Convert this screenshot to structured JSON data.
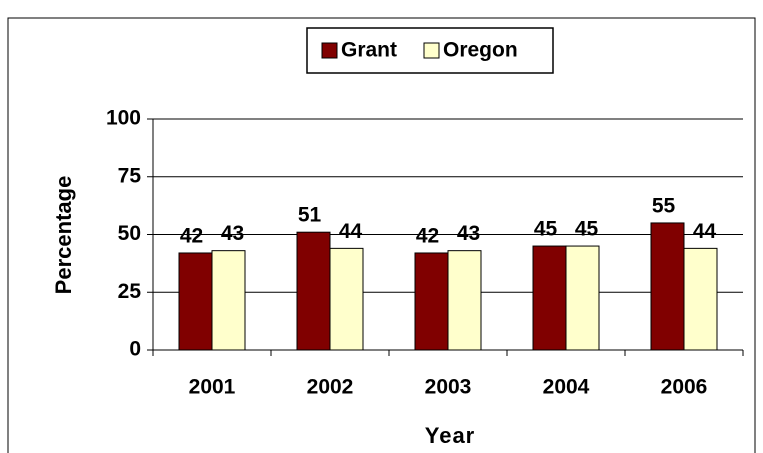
{
  "chart_data": {
    "type": "bar",
    "categories": [
      "2001",
      "2002",
      "2003",
      "2004",
      "2006"
    ],
    "series": [
      {
        "name": "Grant",
        "color": "#800000",
        "values": [
          42,
          51,
          42,
          45,
          55
        ]
      },
      {
        "name": "Oregon",
        "color": "#ffffcc",
        "values": [
          43,
          44,
          43,
          45,
          44
        ]
      }
    ],
    "x_label": "Year",
    "y_label": "Percentage",
    "ylim": [
      0,
      100
    ],
    "yticks": [
      0,
      25,
      50,
      75,
      100
    ],
    "grid": true,
    "legend": "top"
  }
}
